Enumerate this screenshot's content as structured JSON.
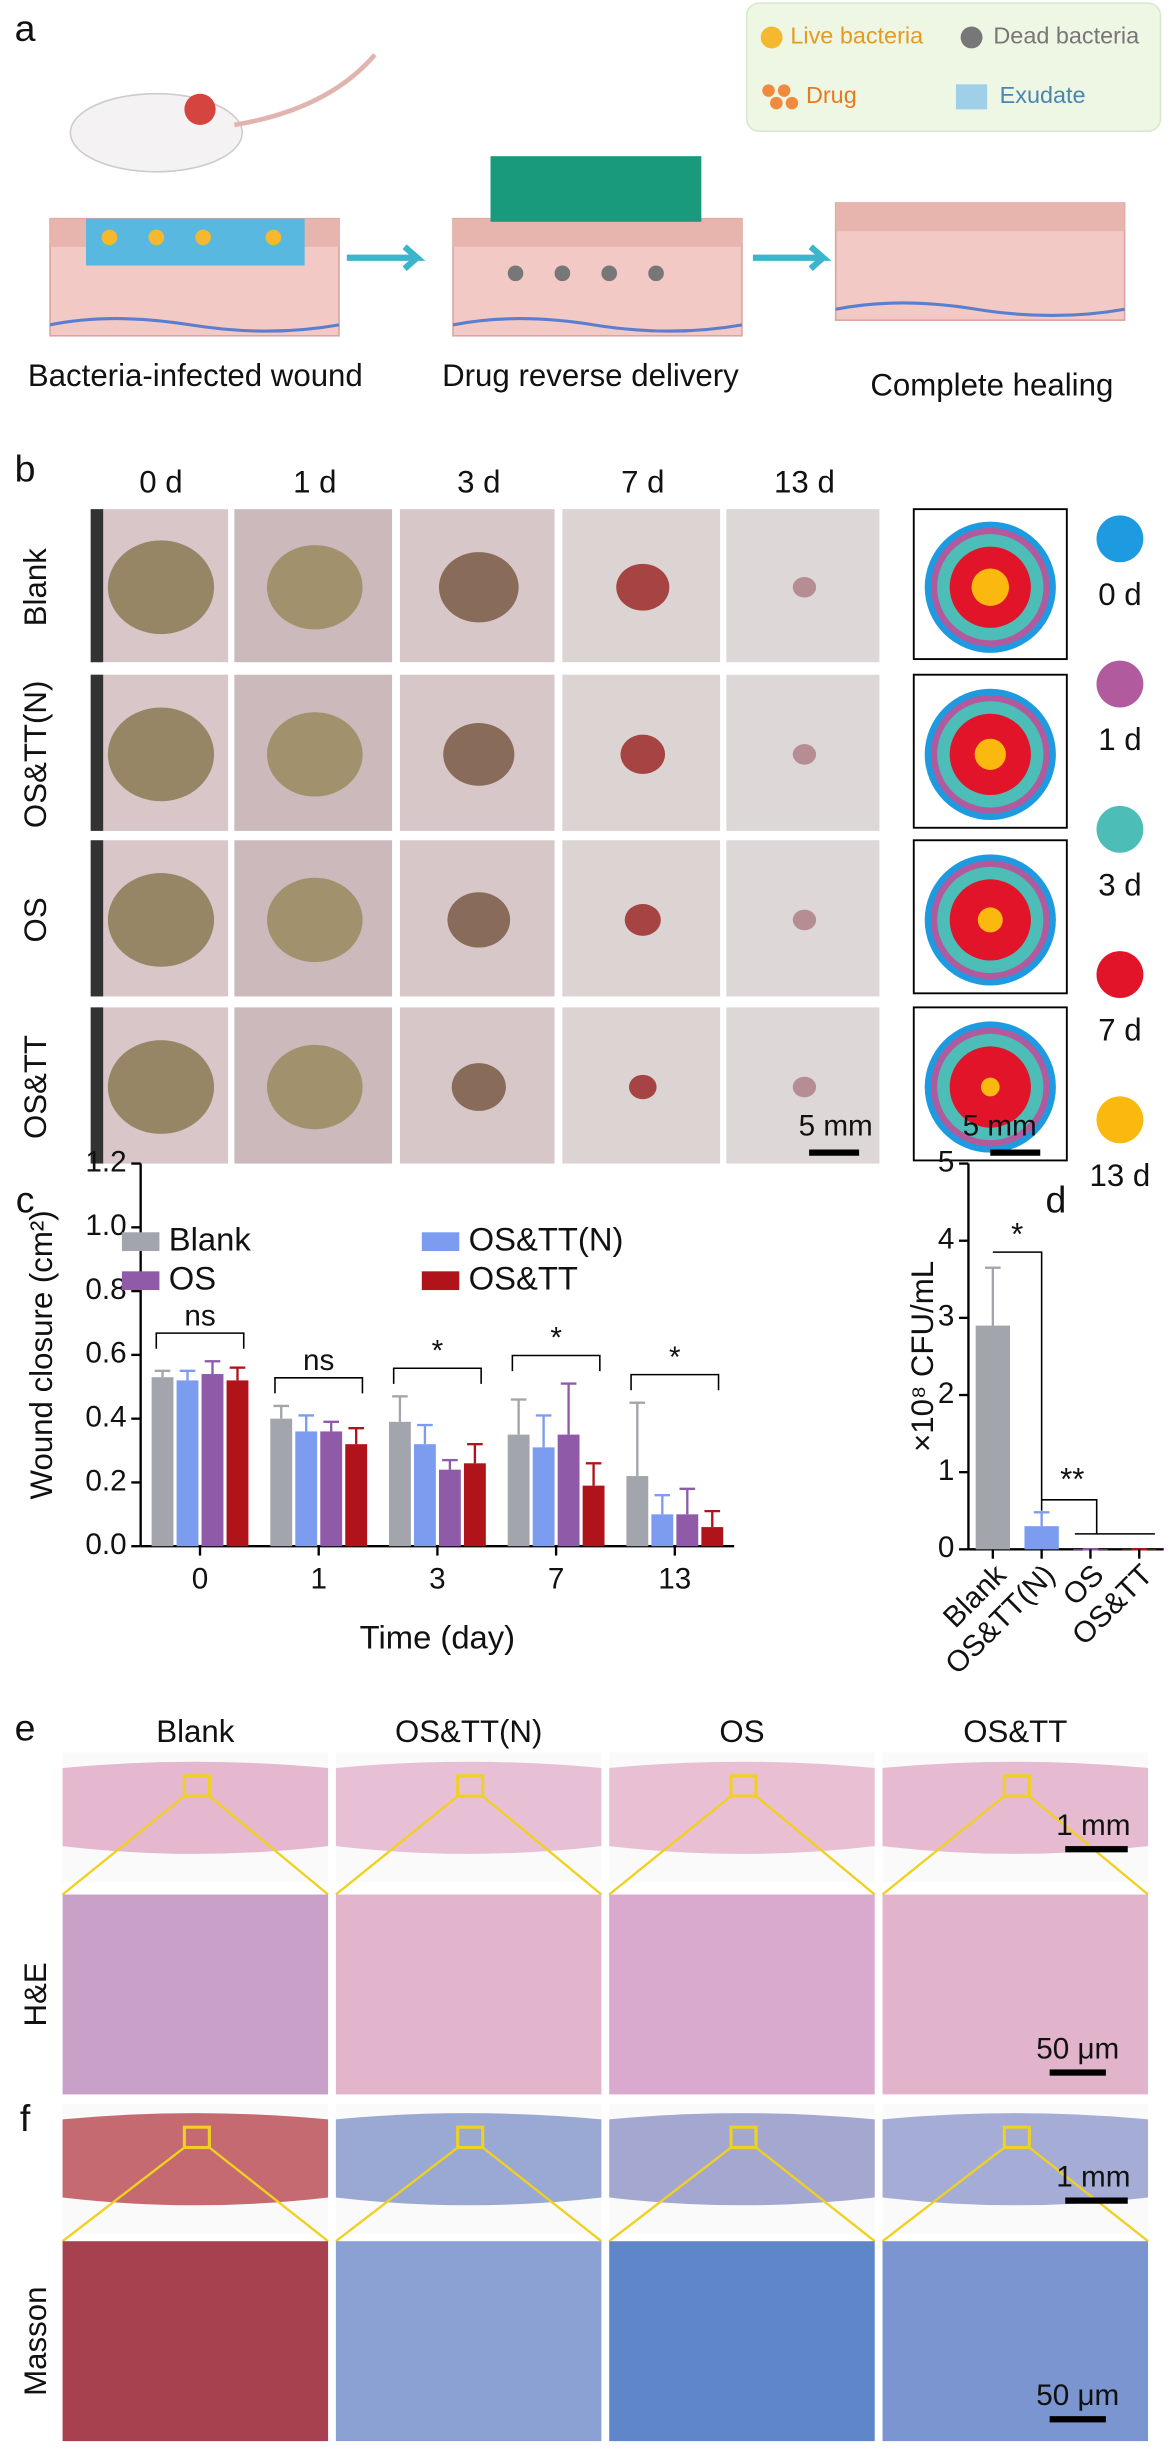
{
  "panel_a": {
    "label": "a",
    "legend": [
      "Live bacteria",
      "Dead bacteria",
      "Drug",
      "Exudate"
    ],
    "steps": [
      "Bacteria-infected wound",
      "Drug reverse delivery",
      "Complete healing"
    ]
  },
  "panel_b": {
    "label": "b",
    "days": [
      "0 d",
      "1 d",
      "3 d",
      "7 d",
      "13 d"
    ],
    "groups": [
      "Blank",
      "OS&TT(N)",
      "OS",
      "OS&TT"
    ],
    "scale_bar": "5 mm",
    "outline_scale_bar": "5 mm",
    "legend": [
      "0 d",
      "1 d",
      "3 d",
      "7 d",
      "13 d"
    ],
    "legend_colors": [
      "#1e9be0",
      "#b25a9e",
      "#4dbdb7",
      "#e2142a",
      "#fbb80f"
    ]
  },
  "chart_data": [
    {
      "type": "bar",
      "panel": "c",
      "xlabel": "Time (day)",
      "ylabel": "Wound closure (cm²)",
      "categories": [
        "0",
        "1",
        "3",
        "7",
        "13"
      ],
      "series": [
        {
          "name": "Blank",
          "color": "#a2a5ab",
          "values": [
            0.53,
            0.4,
            0.39,
            0.35,
            0.22
          ],
          "errors": [
            0.02,
            0.04,
            0.08,
            0.11,
            0.23
          ]
        },
        {
          "name": "OS&TT(N)",
          "color": "#7c9cf0",
          "values": [
            0.52,
            0.36,
            0.32,
            0.31,
            0.1
          ],
          "errors": [
            0.03,
            0.05,
            0.06,
            0.1,
            0.06
          ]
        },
        {
          "name": "OS",
          "color": "#8f5ba9",
          "values": [
            0.54,
            0.36,
            0.24,
            0.35,
            0.1
          ],
          "errors": [
            0.04,
            0.03,
            0.03,
            0.16,
            0.08
          ]
        },
        {
          "name": "OS&TT",
          "color": "#b0141a",
          "values": [
            0.52,
            0.32,
            0.26,
            0.19,
            0.06
          ],
          "errors": [
            0.04,
            0.05,
            0.06,
            0.07,
            0.05
          ]
        }
      ],
      "ylim": [
        0,
        1.2
      ],
      "yticks": [
        {
          "value": 0,
          "label": "0.0"
        },
        0.2,
        0.4,
        0.6,
        0.8,
        {
          "value": 1,
          "label": "1.0"
        },
        1.2
      ],
      "annotations": [
        "ns",
        "ns",
        "*",
        "*",
        "*"
      ]
    },
    {
      "type": "bar",
      "panel": "d",
      "ylabel": "×10⁸ CFU/mL",
      "categories": [
        "Blank",
        "OS&TT(N)",
        "OS",
        "OS&TT"
      ],
      "values": [
        2.9,
        0.3,
        0,
        0
      ],
      "errors": [
        0.75,
        0.18,
        0,
        0
      ],
      "colors": [
        "#a2a5ab",
        "#7c9cf0",
        "#8f5ba9",
        "#b0141a"
      ],
      "ylim": [
        0,
        5
      ],
      "yticks": [
        0,
        1,
        2,
        3,
        4,
        5
      ],
      "annotations": [
        "*",
        "**"
      ]
    }
  ],
  "panel_e": {
    "label": "e",
    "columns": [
      "Blank",
      "OS&TT(N)",
      "OS",
      "OS&TT"
    ],
    "row_label": "H&E",
    "scale_low": "1 mm",
    "scale_high": "50 μm"
  },
  "panel_f": {
    "label": "f",
    "row_label": "Masson",
    "scale_low": "1 mm",
    "scale_high": "50 μm"
  }
}
